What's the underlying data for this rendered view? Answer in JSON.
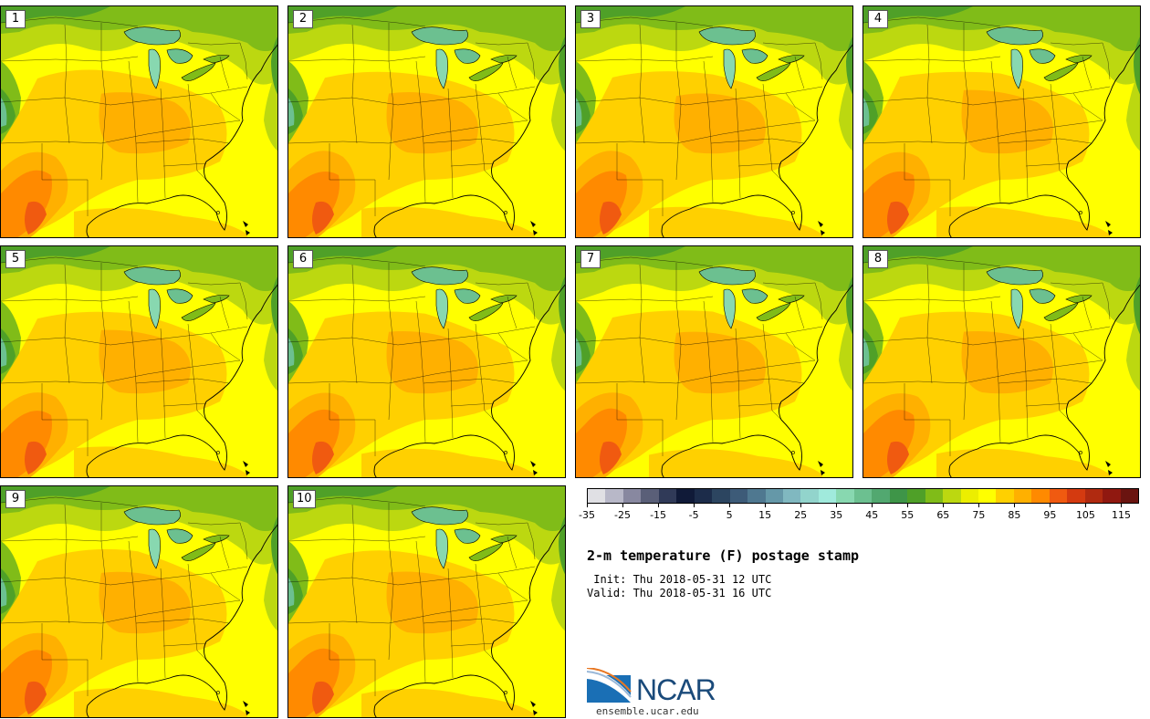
{
  "panels": [
    {
      "label": "1"
    },
    {
      "label": "2"
    },
    {
      "label": "3"
    },
    {
      "label": "4"
    },
    {
      "label": "5"
    },
    {
      "label": "6"
    },
    {
      "label": "7"
    },
    {
      "label": "8"
    },
    {
      "label": "9"
    },
    {
      "label": "10"
    }
  ],
  "colorbar": {
    "colors": [
      "#e0e0e4",
      "#b8b8c8",
      "#8888a0",
      "#5a5f78",
      "#303a58",
      "#101a38",
      "#1c2c4a",
      "#2c4560",
      "#3d5b78",
      "#4f7890",
      "#6598a8",
      "#80b8c0",
      "#92d4cc",
      "#a0eadc",
      "#88d8b0",
      "#6cc090",
      "#52a870",
      "#3e9548",
      "#4fa028",
      "#80bc18",
      "#bcd810",
      "#ecee00",
      "#ffff00",
      "#ffd000",
      "#ffb000",
      "#ff8a00",
      "#f05a10",
      "#d43a10",
      "#b02a10",
      "#901810",
      "#6a1410"
    ],
    "tick_labels": [
      "-35",
      "-25",
      "-15",
      "-5",
      "5",
      "15",
      "25",
      "35",
      "45",
      "55",
      "65",
      "75",
      "85",
      "95",
      "105",
      "115"
    ]
  },
  "title": "2-m temperature (F) postage stamp",
  "init_line": " Init: Thu 2018-05-31 12 UTC",
  "valid_line": "Valid: Thu 2018-05-31 16 UTC",
  "logo": {
    "name": "NCAR",
    "url": "ensemble.ucar.edu"
  }
}
